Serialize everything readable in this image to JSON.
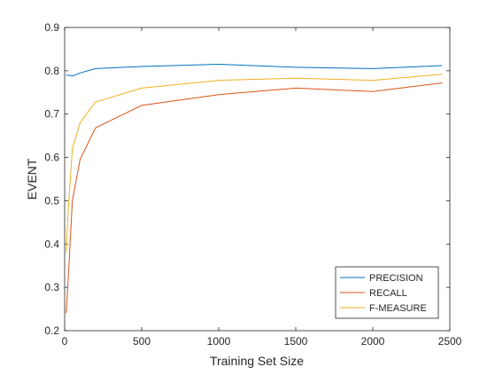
{
  "chart_data": {
    "type": "line",
    "title": "",
    "xlabel": "Training Set Size",
    "ylabel": "EVENT",
    "xlim": [
      0,
      2500
    ],
    "ylim": [
      0.2,
      0.9
    ],
    "xticks": [
      0,
      500,
      1000,
      1500,
      2000,
      2500
    ],
    "yticks": [
      0.2,
      0.3,
      0.4,
      0.5,
      0.6,
      0.7,
      0.8,
      0.9
    ],
    "xtick_labels": [
      "0",
      "500",
      "1000",
      "1500",
      "2000",
      "2500"
    ],
    "ytick_labels": [
      "0.2",
      "0.3",
      "0.4",
      "0.5",
      "0.6",
      "0.7",
      "0.8",
      "0.9"
    ],
    "grid": false,
    "legend_position": "bottom-right",
    "series": [
      {
        "name": "PRECISION",
        "color": "#0072BD",
        "x": [
          10,
          20,
          50,
          100,
          200,
          500,
          1000,
          1500,
          2000,
          2450
        ],
        "y": [
          0.79,
          0.79,
          0.788,
          0.795,
          0.805,
          0.81,
          0.815,
          0.808,
          0.805,
          0.812
        ]
      },
      {
        "name": "RECALL",
        "color": "#D95319",
        "x": [
          10,
          20,
          50,
          100,
          200,
          500,
          1000,
          1500,
          2000,
          2450
        ],
        "y": [
          0.24,
          0.3,
          0.5,
          0.595,
          0.668,
          0.72,
          0.745,
          0.76,
          0.752,
          0.772
        ]
      },
      {
        "name": "F-MEASURE",
        "color": "#EDB120",
        "x": [
          10,
          20,
          50,
          100,
          200,
          500,
          1000,
          1500,
          2000,
          2450
        ],
        "y": [
          0.38,
          0.46,
          0.62,
          0.68,
          0.728,
          0.76,
          0.778,
          0.783,
          0.778,
          0.792
        ]
      }
    ]
  }
}
